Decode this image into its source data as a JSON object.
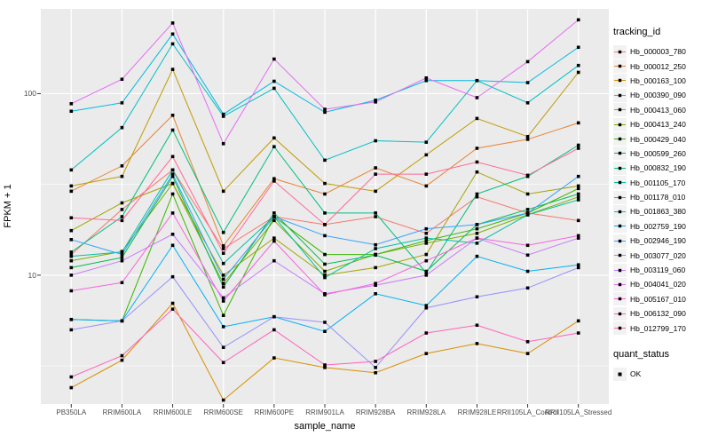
{
  "chart_data": {
    "type": "line",
    "title": "",
    "xlabel": "sample_name",
    "ylabel": "FPKM + 1",
    "y_scale": "log10",
    "ylim": [
      1.95,
      293
    ],
    "y_ticks": [
      10,
      100
    ],
    "grid": true,
    "panel_bg": "#EBEBEB",
    "grid_color": "#FFFFFF",
    "point_color": "#000000",
    "legend_position": "right",
    "legend": {
      "series_title": "tracking_id",
      "shape_title": "quant_status",
      "shape_items": [
        {
          "label": "OK"
        }
      ]
    },
    "categories": [
      "PB350LA",
      "RRIM600LA",
      "RRIM600LE",
      "RRIM600SE",
      "RRIM600PE",
      "RRIM901LA",
      "RRIM928BA",
      "RRIM928LA",
      "RRIM928LE",
      "RRII105LA_Control",
      "RRII105LA_Stressed"
    ],
    "series": [
      {
        "name": "Hb_000003_780",
        "color": "#F8766D",
        "values": [
          13,
          23,
          38,
          14,
          21,
          19,
          21,
          17,
          27,
          22,
          20
        ]
      },
      {
        "name": "Hb_000012_250",
        "color": "#EA8331",
        "values": [
          29,
          40,
          76,
          14.5,
          34,
          28,
          39,
          31,
          50,
          56,
          69
        ]
      },
      {
        "name": "Hb_000163_100",
        "color": "#D89000",
        "values": [
          2.4,
          3.4,
          7,
          2.05,
          3.5,
          3.1,
          2.9,
          3.7,
          4.2,
          3.7,
          5.6
        ]
      },
      {
        "name": "Hb_000390_090",
        "color": "#C09B00",
        "values": [
          31,
          35,
          136,
          29,
          57,
          32,
          29,
          46,
          73,
          58,
          131
        ]
      },
      {
        "name": "Hb_000413_060",
        "color": "#A3A500",
        "values": [
          17.6,
          25,
          32,
          10,
          16,
          10,
          11,
          13,
          37,
          28,
          31
        ]
      },
      {
        "name": "Hb_000413_240",
        "color": "#7CAE00",
        "values": [
          12,
          13.5,
          32,
          9,
          20,
          10.5,
          13,
          15,
          17,
          21.5,
          27
        ]
      },
      {
        "name": "Hb_000429_040",
        "color": "#39B600",
        "values": [
          5.7,
          5.6,
          28,
          6,
          21,
          13,
          13,
          15.5,
          18,
          22,
          30
        ]
      },
      {
        "name": "Hb_000599_260",
        "color": "#00BB4E",
        "values": [
          11,
          12.5,
          35,
          8.6,
          22,
          11.5,
          12.9,
          10.5,
          19,
          23,
          28
        ]
      },
      {
        "name": "Hb_000832_190",
        "color": "#00BF7D",
        "values": [
          13.4,
          21,
          63,
          17.2,
          51,
          22,
          22,
          10.3,
          28,
          35,
          52
        ]
      },
      {
        "name": "Hb_001105_170",
        "color": "#00C1A3",
        "values": [
          12.7,
          13.4,
          38,
          11.6,
          21,
          9.7,
          14,
          16,
          15,
          21.5,
          26
        ]
      },
      {
        "name": "Hb_001178_010",
        "color": "#00BFC4",
        "values": [
          38,
          65,
          188,
          75,
          107,
          43,
          55,
          54,
          118,
          89,
          143
        ]
      },
      {
        "name": "Hb_001863_380",
        "color": "#00BAE0",
        "values": [
          80,
          89,
          213,
          77,
          117,
          79,
          92,
          118,
          118,
          115,
          180
        ]
      },
      {
        "name": "Hb_002759_190",
        "color": "#00B0F6",
        "values": [
          5.7,
          5.6,
          14.6,
          5.2,
          5.9,
          4.9,
          7.9,
          6.8,
          12.7,
          10.5,
          11.4
        ]
      },
      {
        "name": "Hb_002946_190",
        "color": "#35A2FF",
        "values": [
          15.7,
          13,
          36,
          9.5,
          21,
          16.5,
          14.7,
          18,
          19,
          22,
          35
        ]
      },
      {
        "name": "Hb_003077_020",
        "color": "#9590FF",
        "values": [
          5.0,
          5.6,
          9.8,
          4.0,
          5.9,
          5.5,
          3.1,
          6.6,
          7.6,
          8.5,
          11
        ]
      },
      {
        "name": "Hb_003119_060",
        "color": "#C77CFF",
        "values": [
          10,
          12,
          16.8,
          7.5,
          12,
          7.9,
          8.8,
          10,
          16,
          12.9,
          16
        ]
      },
      {
        "name": "Hb_004041_020",
        "color": "#E76BF3",
        "values": [
          88,
          120,
          245,
          53,
          155,
          82,
          90,
          122,
          95,
          150,
          255
        ]
      },
      {
        "name": "Hb_005167_010",
        "color": "#FA62DB",
        "values": [
          8.2,
          9.1,
          22,
          7.2,
          15.4,
          7.8,
          9,
          12,
          16,
          14.6,
          16.5
        ]
      },
      {
        "name": "Hb_006132_090",
        "color": "#FF62BC",
        "values": [
          2.75,
          3.6,
          6.5,
          3.3,
          5.0,
          3.2,
          3.35,
          4.8,
          5.3,
          4.3,
          4.8
        ]
      },
      {
        "name": "Hb_012799_170",
        "color": "#FF6A98",
        "values": [
          20.7,
          20,
          45,
          13.2,
          33,
          19,
          36,
          36,
          42,
          35.5,
          50
        ]
      }
    ]
  }
}
